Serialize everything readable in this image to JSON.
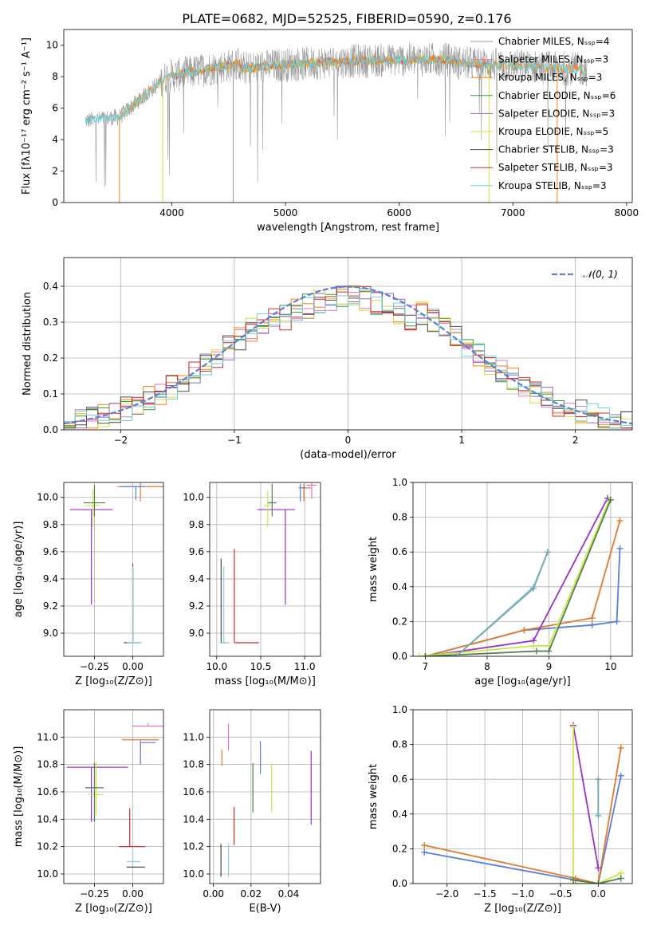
{
  "figure": {
    "title": "PLATE=0682, MJD=52525, FIBERID=0590, z=0.176"
  },
  "colors": {
    "Chabrier MILES": "#999999",
    "Salpeter MILES": "#e377c2",
    "Kroupa MILES": "#ff7f0e",
    "Chabrier ELODIE": "#2ca02c",
    "Salpeter ELODIE": "#9467bd",
    "Kroupa ELODIE": "#dbdb3d",
    "Chabrier STELIB": "#4c4c4c",
    "Salpeter STELIB": "#d62728",
    "Kroupa STELIB": "#6dd3d9",
    "gaussian": "#5a7fd6",
    "blue": "#5a7fd6",
    "orange": "#e07a2e",
    "purple": "#9b2fc7",
    "lime": "#c8e84a",
    "green": "#4f7f4f",
    "teal": "#8ecfd6"
  },
  "chart_data": [
    {
      "id": "spectrum",
      "type": "line",
      "xlabel": "wavelength [Angstrom, rest frame]",
      "ylabel": "Flux [fλ10⁻¹⁷ erg cm⁻² s⁻¹ A⁻¹]",
      "xlim": [
        3050,
        8050
      ],
      "ylim": [
        0,
        11
      ],
      "xticks": [
        4000,
        5000,
        6000,
        7000,
        8000
      ],
      "yticks": [
        0,
        2,
        4,
        6,
        8,
        10
      ],
      "data_range": [
        3240,
        7650
      ],
      "legend": [
        "Chabrier MILES, Nₛₛₚ=4",
        "Salpeter MILES, Nₛₛₚ=3",
        "Kroupa MILES, Nₛₛₚ=3",
        "Chabrier ELODIE, Nₛₛₚ=6",
        "Salpeter ELODIE, Nₛₛₚ=3",
        "Kroupa ELODIE, Nₛₛₚ=5",
        "Chabrier STELIB, Nₛₛₚ=3",
        "Salpeter STELIB, Nₛₛₚ=3",
        "Kroupa STELIB, Nₛₛₚ=3"
      ],
      "legend_position": "right",
      "grid": false
    },
    {
      "id": "residuals",
      "type": "step",
      "xlabel": "(data-model)/error",
      "ylabel": "Normed distribution",
      "xlim": [
        -2.5,
        2.5
      ],
      "ylim": [
        0,
        0.48
      ],
      "xticks": [
        -2,
        -1,
        0,
        1,
        2
      ],
      "yticks": [
        0.0,
        0.1,
        0.2,
        0.3,
        0.4
      ],
      "legend": [
        "𝒩(0, 1)"
      ],
      "legend_position": "top-right",
      "grid": true,
      "bin_width": 0.1,
      "bin_start": -2.5,
      "hist_series": [
        "Salpeter MILES",
        "Kroupa MILES",
        "Chabrier ELODIE",
        "Salpeter ELODIE",
        "Kroupa ELODIE",
        "Chabrier STELIB",
        "Salpeter STELIB",
        "Kroupa STELIB",
        "gaussian"
      ]
    },
    {
      "id": "age-vs-Z",
      "type": "errorbar",
      "xlabel": "Z [log₁₀(Z/Z⊙)]",
      "ylabel": "age  [log₁₀(age/yr)]",
      "xlim": [
        -0.45,
        0.2
      ],
      "ylim": [
        8.83,
        10.11
      ],
      "xticks": [
        -0.25,
        0.0
      ],
      "yticks": [
        9.0,
        9.2,
        9.4,
        9.6,
        9.8,
        10.0
      ],
      "grid": true,
      "points": [
        {
          "c": "orange",
          "x": 0.05,
          "xe": [
            0.15,
            0.15
          ],
          "y": 10.08,
          "ye": [
            0.11,
            0.03
          ]
        },
        {
          "c": "blue",
          "x": 0.02,
          "xe": [
            0.1,
            0.06
          ],
          "y": 10.08,
          "ye": [
            0.1,
            0.0
          ]
        },
        {
          "c": "purple",
          "x": -0.27,
          "xe": [
            0.14,
            0.14
          ],
          "y": 9.91,
          "ye": [
            0.7,
            0.0
          ]
        },
        {
          "c": "lime",
          "x": -0.26,
          "xe": [
            0.05,
            0.05
          ],
          "y": 9.94,
          "ye": [
            0.16,
            0.12
          ]
        },
        {
          "c": "green",
          "x": -0.25,
          "xe": [
            0.07,
            0.07
          ],
          "y": 9.96,
          "ye": [
            0.1,
            0.13
          ]
        },
        {
          "c": "Salpeter STELIB",
          "x": 0.0,
          "xe": [
            0.06,
            0.0
          ],
          "y": 8.93,
          "ye": [
            0.0,
            0.58
          ]
        },
        {
          "c": "Chabrier STELIB",
          "x": 0.0,
          "xe": [
            0.05,
            0.05
          ],
          "y": 8.93,
          "ye": [
            0.0,
            0.55
          ]
        },
        {
          "c": "teal",
          "x": 0.0,
          "xe": [
            0.04,
            0.06
          ],
          "y": 8.93,
          "ye": [
            0.0,
            0.56
          ]
        }
      ]
    },
    {
      "id": "age-vs-mass",
      "type": "errorbar",
      "xlabel": "mass [log₁₀(M/M⊙)]",
      "ylabel": "",
      "xlim": [
        9.92,
        11.18
      ],
      "ylim": [
        8.83,
        10.11
      ],
      "xticks": [
        10.0,
        10.5,
        11.0
      ],
      "yticks": [
        9.0,
        9.2,
        9.4,
        9.6,
        9.8,
        10.0
      ],
      "grid": true,
      "points": [
        {
          "c": "Salpeter MILES",
          "x": 11.08,
          "xe": [
            0.06,
            0.06
          ],
          "y": 10.09,
          "ye": [
            0.1,
            0.03
          ]
        },
        {
          "c": "orange",
          "x": 10.99,
          "xe": [
            0.02,
            0.08
          ],
          "y": 10.07,
          "ye": [
            0.1,
            0.03
          ]
        },
        {
          "c": "blue",
          "x": 10.95,
          "xe": [
            0.02,
            0.06
          ],
          "y": 10.07,
          "ye": [
            0.1,
            0.03
          ]
        },
        {
          "c": "purple",
          "x": 10.78,
          "xe": [
            0.32,
            0.11
          ],
          "y": 9.91,
          "ye": [
            0.7,
            0.0
          ]
        },
        {
          "c": "lime",
          "x": 10.58,
          "xe": [
            0.05,
            0.03
          ],
          "y": 9.94,
          "ye": [
            0.16,
            0.11
          ]
        },
        {
          "c": "green",
          "x": 10.63,
          "xe": [
            0.05,
            0.05
          ],
          "y": 9.96,
          "ye": [
            0.1,
            0.14
          ]
        },
        {
          "c": "Salpeter STELIB",
          "x": 10.2,
          "xe": [
            0.0,
            0.28
          ],
          "y": 8.93,
          "ye": [
            0.0,
            0.69
          ]
        },
        {
          "c": "Chabrier STELIB",
          "x": 10.05,
          "xe": [
            0.0,
            0.07
          ],
          "y": 8.93,
          "ye": [
            0.0,
            0.62
          ]
        },
        {
          "c": "teal",
          "x": 10.08,
          "xe": [
            0.05,
            0.07
          ],
          "y": 8.93,
          "ye": [
            0.0,
            0.56
          ]
        }
      ]
    },
    {
      "id": "weight-vs-age",
      "type": "line",
      "xlabel": "age  [log₁₀(age/yr)]",
      "ylabel": "mass weight",
      "xlim": [
        6.8,
        10.35
      ],
      "ylim": [
        0,
        1.0
      ],
      "xticks": [
        7,
        8,
        9,
        10
      ],
      "yticks": [
        0.0,
        0.2,
        0.4,
        0.6,
        0.8,
        1.0
      ],
      "grid": true,
      "series": [
        {
          "c": "blue",
          "x": [
            7.0,
            8.6,
            9.7,
            10.1,
            10.15
          ],
          "y": [
            0.0,
            0.15,
            0.18,
            0.2,
            0.62
          ]
        },
        {
          "c": "orange",
          "x": [
            7.0,
            8.6,
            9.7,
            10.15
          ],
          "y": [
            0.0,
            0.15,
            0.22,
            0.78
          ]
        },
        {
          "c": "purple",
          "x": [
            7.0,
            8.75,
            9.95
          ],
          "y": [
            0.0,
            0.09,
            0.91
          ]
        },
        {
          "c": "lime",
          "x": [
            6.9,
            8.75,
            9.0,
            9.98
          ],
          "y": [
            0.0,
            0.06,
            0.06,
            0.9
          ]
        },
        {
          "c": "green",
          "x": [
            7.0,
            8.8,
            9.0,
            10.0
          ],
          "y": [
            0.0,
            0.03,
            0.03,
            0.9
          ]
        },
        {
          "c": "teal",
          "x": [
            7.5,
            8.75,
            8.98
          ],
          "y": [
            0.0,
            0.4,
            0.6
          ]
        },
        {
          "c": "gray",
          "x": [
            7.5,
            8.75,
            8.98
          ],
          "y": [
            0.0,
            0.39,
            0.6
          ]
        }
      ]
    },
    {
      "id": "mass-vs-Z",
      "type": "errorbar",
      "xlabel": "Z [log₁₀(Z/Z⊙)]",
      "ylabel": "mass [log₁₀(M/M⊙)]",
      "xlim": [
        -0.45,
        0.2
      ],
      "ylim": [
        9.93,
        11.2
      ],
      "xticks": [
        -0.25,
        0.0
      ],
      "yticks": [
        10.0,
        10.2,
        10.4,
        10.6,
        10.8,
        11.0
      ],
      "grid": true,
      "points": [
        {
          "c": "Salpeter MILES",
          "x": 0.1,
          "xe": [
            0.1,
            0.1
          ],
          "y": 11.08,
          "ye": [
            0.0,
            0.02
          ]
        },
        {
          "c": "orange",
          "x": 0.05,
          "xe": [
            0.12,
            0.12
          ],
          "y": 10.98,
          "ye": [
            0.18,
            0.0
          ]
        },
        {
          "c": "blue",
          "x": 0.05,
          "xe": [
            0.0,
            0.1
          ],
          "y": 10.96,
          "ye": [
            0.16,
            0.0
          ]
        },
        {
          "c": "purple",
          "x": -0.27,
          "xe": [
            0.16,
            0.24
          ],
          "y": 10.78,
          "ye": [
            0.4,
            0.0
          ]
        },
        {
          "c": "lime",
          "x": -0.24,
          "xe": [
            0.05,
            0.05
          ],
          "y": 10.58,
          "ye": [
            0.15,
            0.24
          ]
        },
        {
          "c": "green",
          "x": -0.25,
          "xe": [
            0.06,
            0.06
          ],
          "y": 10.63,
          "ye": [
            0.25,
            0.18
          ]
        },
        {
          "c": "Salpeter STELIB",
          "x": -0.02,
          "xe": [
            0.07,
            0.1
          ],
          "y": 10.2,
          "ye": [
            0.0,
            0.28
          ]
        },
        {
          "c": "Chabrier STELIB",
          "x": 0.0,
          "xe": [
            0.04,
            0.08
          ],
          "y": 10.05,
          "ye": [
            0.0,
            0.0
          ]
        },
        {
          "c": "teal",
          "x": 0.0,
          "xe": [
            0.04,
            0.05
          ],
          "y": 10.09,
          "ye": [
            0.0,
            0.1
          ]
        }
      ]
    },
    {
      "id": "mass-vs-EBV",
      "type": "errorbar",
      "xlabel": "E(B-V)",
      "ylabel": "",
      "xlim": [
        -0.002,
        0.057
      ],
      "ylim": [
        9.93,
        11.2
      ],
      "xticks": [
        0.0,
        0.02,
        0.04
      ],
      "yticks": [
        10.0,
        10.2,
        10.4,
        10.6,
        10.8,
        11.0
      ],
      "grid": true,
      "points": [
        {
          "c": "Salpeter MILES",
          "x": 0.008,
          "xe": [
            0,
            0
          ],
          "y": 11.0,
          "ye": [
            0.1,
            0.1
          ]
        },
        {
          "c": "orange",
          "x": 0.0045,
          "xe": [
            0,
            0
          ],
          "y": 10.85,
          "ye": [
            0.06,
            0.06
          ]
        },
        {
          "c": "blue",
          "x": 0.025,
          "xe": [
            0,
            0
          ],
          "y": 10.85,
          "ye": [
            0.12,
            0.12
          ]
        },
        {
          "c": "green",
          "x": 0.021,
          "xe": [
            0,
            0
          ],
          "y": 10.63,
          "ye": [
            0.18,
            0.18
          ]
        },
        {
          "c": "lime",
          "x": 0.031,
          "xe": [
            0,
            0
          ],
          "y": 10.63,
          "ye": [
            0.18,
            0.18
          ]
        },
        {
          "c": "purple",
          "x": 0.052,
          "xe": [
            0,
            0
          ],
          "y": 10.63,
          "ye": [
            0.27,
            0.27
          ]
        },
        {
          "c": "Salpeter STELIB",
          "x": 0.011,
          "xe": [
            0,
            0
          ],
          "y": 10.35,
          "ye": [
            0.14,
            0.14
          ]
        },
        {
          "c": "Chabrier STELIB",
          "x": 0.004,
          "xe": [
            0,
            0
          ],
          "y": 10.1,
          "ye": [
            0.12,
            0.12
          ]
        },
        {
          "c": "teal",
          "x": 0.008,
          "xe": [
            0,
            0
          ],
          "y": 10.1,
          "ye": [
            0.12,
            0.12
          ]
        }
      ]
    },
    {
      "id": "weight-vs-Z",
      "type": "line",
      "xlabel": "Z [log₁₀(Z/Z⊙)]",
      "ylabel": "mass weight",
      "xlim": [
        -2.45,
        0.45
      ],
      "ylim": [
        0,
        1.0
      ],
      "xticks": [
        -2.0,
        -1.5,
        -1.0,
        -0.5,
        0.0
      ],
      "yticks": [
        0.0,
        0.2,
        0.4,
        0.6,
        0.8,
        1.0
      ],
      "grid": true,
      "series": [
        {
          "c": "blue",
          "x": [
            -2.3,
            -0.3,
            0.0,
            0.3
          ],
          "y": [
            0.18,
            0.02,
            0.0,
            0.62
          ]
        },
        {
          "c": "orange",
          "x": [
            -2.3,
            -0.3,
            0.0,
            0.3
          ],
          "y": [
            0.22,
            0.03,
            0.0,
            0.78
          ]
        },
        {
          "c": "purple",
          "x": [
            -0.33,
            0.0
          ],
          "y": [
            0.91,
            0.09
          ]
        },
        {
          "c": "lime",
          "x": [
            -0.33,
            -0.33,
            0.0,
            0.3
          ],
          "y": [
            0.9,
            0.0,
            0.0,
            0.06
          ]
        },
        {
          "c": "green",
          "x": [
            -0.33,
            0.0,
            0.3
          ],
          "y": [
            0.02,
            0.0,
            0.03
          ]
        },
        {
          "c": "teal",
          "x": [
            0.0,
            0.0
          ],
          "y": [
            0.4,
            0.6
          ]
        },
        {
          "c": "gray",
          "x": [
            0.0,
            0.0
          ],
          "y": [
            0.39,
            0.6
          ]
        }
      ]
    }
  ]
}
